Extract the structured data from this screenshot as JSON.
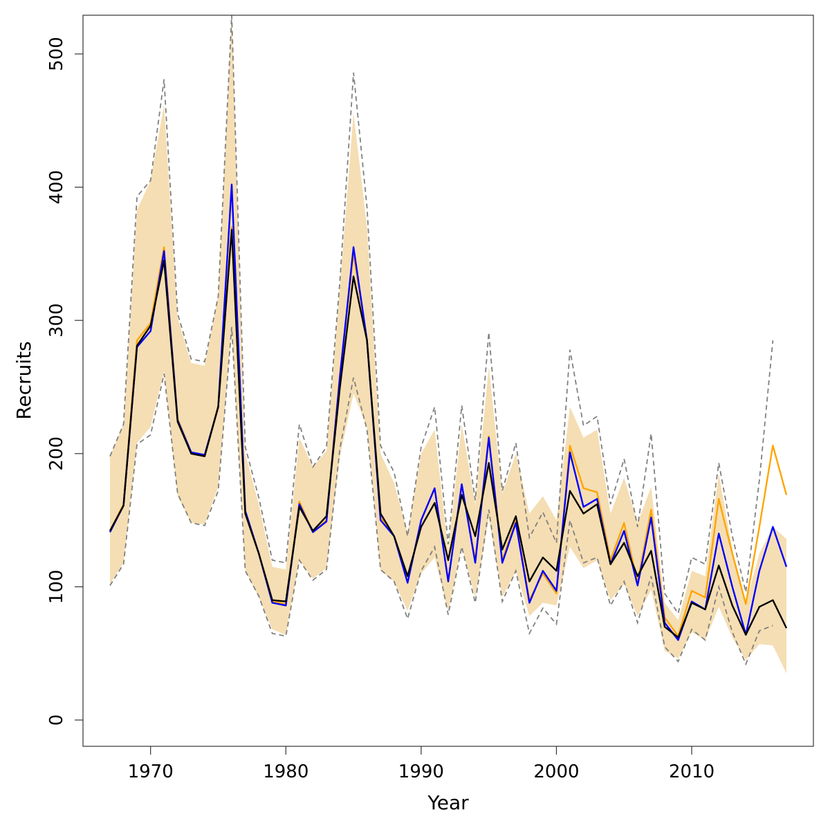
{
  "chart_data": {
    "type": "line",
    "xlabel": "Year",
    "ylabel": "Recruits",
    "xlim": [
      1965.2,
      1918.0
    ],
    "ylim": [
      -20,
      530
    ],
    "x_ticks": [
      1970,
      1980,
      1990,
      2000,
      2010
    ],
    "y_ticks": [
      0,
      100,
      200,
      300,
      400,
      500
    ],
    "grid": false,
    "legend": "none",
    "colors": {
      "band": "#f5deb3",
      "dashed": "#808080",
      "black": "#000000",
      "blue": "#0000ff",
      "orange": "#ffa500"
    },
    "x": [
      1967,
      1968,
      1969,
      1970,
      1971,
      1972,
      1973,
      1974,
      1975,
      1976,
      1977,
      1978,
      1979,
      1980,
      1981,
      1982,
      1983,
      1984,
      1985,
      1986,
      1987,
      1988,
      1989,
      1990,
      1991,
      1992,
      1993,
      1994,
      1995,
      1996,
      1997,
      1998,
      1999,
      2000,
      2001,
      2002,
      2003,
      2004,
      2005,
      2006,
      2007,
      2008,
      2009,
      2010,
      2011,
      2012,
      2013,
      2014,
      2015,
      2016,
      2017
    ],
    "band_upper": [
      198,
      222,
      383,
      405,
      462,
      302,
      268,
      266,
      318,
      530,
      200,
      162,
      115,
      113,
      212,
      190,
      202,
      325,
      456,
      370,
      200,
      178,
      140,
      200,
      218,
      128,
      222,
      162,
      265,
      170,
      200,
      155,
      168,
      150,
      235,
      212,
      218,
      155,
      182,
      148,
      175,
      88,
      75,
      112,
      108,
      185,
      128,
      88,
      125,
      145,
      136
    ],
    "band_lower": [
      102,
      118,
      208,
      220,
      262,
      168,
      148,
      147,
      175,
      292,
      112,
      92,
      68,
      64,
      120,
      106,
      114,
      198,
      245,
      220,
      112,
      104,
      82,
      110,
      122,
      82,
      130,
      92,
      152,
      92,
      112,
      78,
      88,
      86,
      130,
      114,
      120,
      90,
      102,
      78,
      98,
      52,
      46,
      66,
      60,
      85,
      62,
      45,
      57,
      56,
      35
    ],
    "dashed_upper": [
      198,
      222,
      393,
      405,
      481,
      305,
      271,
      269,
      318,
      540,
      205,
      167,
      120,
      118,
      222,
      190,
      205,
      330,
      486,
      385,
      206,
      186,
      138,
      205,
      235,
      132,
      236,
      165,
      291,
      172,
      208,
      137,
      156,
      133,
      278,
      221,
      228,
      162,
      196,
      145,
      215,
      95,
      80,
      122,
      117,
      193,
      138,
      96,
      180,
      285,
      null
    ],
    "dashed_lower": [
      101,
      117,
      207,
      214,
      260,
      170,
      148,
      146,
      172,
      295,
      112,
      93,
      65,
      63,
      120,
      105,
      113,
      204,
      257,
      218,
      113,
      104,
      76,
      112,
      130,
      79,
      130,
      88,
      158,
      89,
      112,
      65,
      84,
      72,
      150,
      118,
      122,
      86,
      104,
      73,
      108,
      55,
      44,
      68,
      60,
      100,
      66,
      42,
      67,
      71,
      null
    ],
    "series": [
      {
        "key": "orange",
        "values": [
          142,
          162,
          285,
          298,
          355,
          226,
          201,
          198,
          236,
          370,
          155,
          125,
          89,
          87,
          164,
          141,
          150,
          260,
          350,
          285,
          152,
          138,
          103,
          150,
          174,
          104,
          176,
          120,
          213,
          120,
          150,
          90,
          110,
          95,
          206,
          174,
          171,
          120,
          148,
          103,
          158,
          77,
          63,
          97,
          92,
          166,
          125,
          87,
          145,
          206,
          169
        ]
      },
      {
        "key": "blue",
        "values": [
          141,
          161,
          280,
          292,
          352,
          225,
          201,
          199,
          235,
          402,
          157,
          125,
          88,
          86,
          162,
          141,
          149,
          258,
          355,
          285,
          150,
          138,
          103,
          150,
          174,
          104,
          177,
          118,
          212,
          118,
          148,
          88,
          112,
          97,
          201,
          160,
          166,
          117,
          142,
          101,
          152,
          73,
          60,
          89,
          83,
          140,
          100,
          64,
          112,
          145,
          115
        ]
      },
      {
        "key": "black",
        "values": [
          142,
          161,
          281,
          296,
          345,
          224,
          200,
          198,
          235,
          368,
          155,
          125,
          90,
          89,
          160,
          142,
          153,
          250,
          333,
          285,
          155,
          138,
          108,
          145,
          163,
          120,
          169,
          138,
          193,
          128,
          153,
          104,
          122,
          112,
          172,
          155,
          162,
          117,
          133,
          108,
          127,
          70,
          62,
          88,
          83,
          116,
          86,
          64,
          85,
          90,
          69
        ]
      }
    ]
  }
}
